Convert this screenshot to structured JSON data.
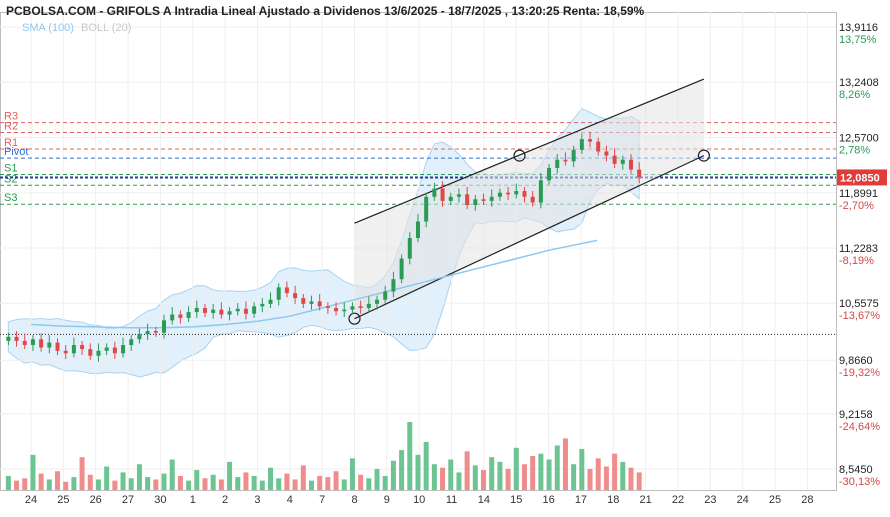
{
  "header": {
    "title": "PCBOLSA.COM - GRIFOLS A Intradia Lineal Ajustado a Dividenos 13/6/2025 - 18/7/2025 , 13:20:25 Renta: 18,59%",
    "legend_sma": "SMA (100)",
    "legend_boll": "BOLL (20)"
  },
  "chart_data": {
    "type": "candlestick",
    "ylim": [
      8.3,
      14.1
    ],
    "x_ticks": [
      "24",
      "25",
      "26",
      "27",
      "30",
      "1",
      "2",
      "3",
      "4",
      "7",
      "8",
      "9",
      "10",
      "11",
      "14",
      "15",
      "16",
      "17",
      "18",
      "21",
      "22",
      "23",
      "24",
      "25",
      "28"
    ],
    "y_ticks": [
      {
        "price": "13,9116",
        "pct": "13,75%",
        "value": 13.9116,
        "pct_color": "green"
      },
      {
        "price": "13,2408",
        "pct": "8,26%",
        "value": 13.2408,
        "pct_color": "green"
      },
      {
        "price": "12,5700",
        "pct": "2,78%",
        "value": 12.57,
        "pct_color": "green"
      },
      {
        "price": "11,8991",
        "pct": "-2,70%",
        "value": 11.8991,
        "pct_color": "red"
      },
      {
        "price": "11,2283",
        "pct": "-8,19%",
        "value": 11.2283,
        "pct_color": "red"
      },
      {
        "price": "10,5575",
        "pct": "-13,67%",
        "value": 10.5575,
        "pct_color": "red"
      },
      {
        "price": "9,8660",
        "pct": "-19,32%",
        "value": 9.866,
        "pct_color": "red"
      },
      {
        "price": "9,2158",
        "pct": "-24,64%",
        "value": 9.2158,
        "pct_color": "red"
      },
      {
        "price": "8,5450",
        "pct": "-30,13%",
        "value": 8.545,
        "pct_color": "red"
      }
    ],
    "current_price": {
      "label": "12,0850",
      "value": 12.085
    },
    "reference_line": 10.18,
    "pivots": [
      {
        "label": "R3",
        "value": 12.75,
        "color": "#e06060"
      },
      {
        "label": "R2",
        "value": 12.63,
        "color": "#e06060"
      },
      {
        "label": "R1",
        "value": 12.43,
        "color": "#e06060"
      },
      {
        "label": "Pivot",
        "value": 12.32,
        "color": "#2f6fd0"
      },
      {
        "label": "S1",
        "value": 12.12,
        "color": "#2a9a55"
      },
      {
        "label": "S2",
        "value": 11.99,
        "color": "#2a9a55"
      },
      {
        "label": "S3",
        "value": 11.76,
        "color": "#2a9a55"
      }
    ],
    "channel": {
      "lower": [
        {
          "day": 10.0,
          "value": 10.37
        },
        {
          "day": 20.8,
          "value": 12.35
        }
      ],
      "upper": [
        {
          "day": 10.0,
          "value": 11.53
        },
        {
          "day": 20.8,
          "value": 13.28
        }
      ],
      "anchors": [
        {
          "day": 10.0,
          "value": 10.37
        },
        {
          "day": 15.1,
          "value": 12.35
        },
        {
          "day": 20.8,
          "value": 12.35
        }
      ]
    },
    "series": {
      "close": [
        10.15,
        10.1,
        10.05,
        10.12,
        10.02,
        10.08,
        9.98,
        9.95,
        10.05,
        10.0,
        9.92,
        9.98,
        10.02,
        9.95,
        10.05,
        10.12,
        10.18,
        10.22,
        10.2,
        10.35,
        10.42,
        10.38,
        10.45,
        10.5,
        10.44,
        10.48,
        10.42,
        10.46,
        10.49,
        10.43,
        10.52,
        10.55,
        10.6,
        10.75,
        10.68,
        10.62,
        10.55,
        10.58,
        10.52,
        10.5,
        10.46,
        10.48,
        10.52,
        10.5,
        10.55,
        10.6,
        10.7,
        10.85,
        11.1,
        11.35,
        11.55,
        11.85,
        11.95,
        11.8,
        11.85,
        11.88,
        11.75,
        11.82,
        11.8,
        11.85,
        11.9,
        11.88,
        11.92,
        11.85,
        11.78,
        12.05,
        12.2,
        12.3,
        12.28,
        12.42,
        12.55,
        12.52,
        12.4,
        12.35,
        12.25,
        12.3,
        12.18,
        12.085
      ],
      "sma100": [
        10.3,
        10.28,
        10.27,
        10.26,
        10.26,
        10.27,
        10.3,
        10.34,
        10.4,
        10.5,
        10.6,
        10.7,
        10.8,
        10.9,
        11.0,
        11.1,
        11.2,
        11.32
      ],
      "sma_days": [
        0,
        1,
        2,
        3,
        4,
        5,
        6,
        7,
        8,
        9,
        10,
        11,
        12,
        13,
        14,
        15,
        16,
        17.5
      ],
      "volume": [
        12,
        8,
        10,
        30,
        14,
        9,
        16,
        7,
        11,
        28,
        13,
        9,
        20,
        8,
        15,
        10,
        22,
        11,
        9,
        14,
        26,
        12,
        8,
        17,
        10,
        13,
        9,
        24,
        11,
        15,
        12,
        8,
        19,
        10,
        14,
        9,
        21,
        8,
        12,
        11,
        16,
        9,
        27,
        13,
        10,
        18,
        12,
        25,
        34,
        58,
        30,
        41,
        22,
        19,
        26,
        15,
        33,
        21,
        17,
        28,
        24,
        18,
        36,
        22,
        29,
        31,
        26,
        38,
        44,
        22,
        35,
        18,
        27,
        20,
        31,
        24,
        19,
        15
      ]
    }
  }
}
